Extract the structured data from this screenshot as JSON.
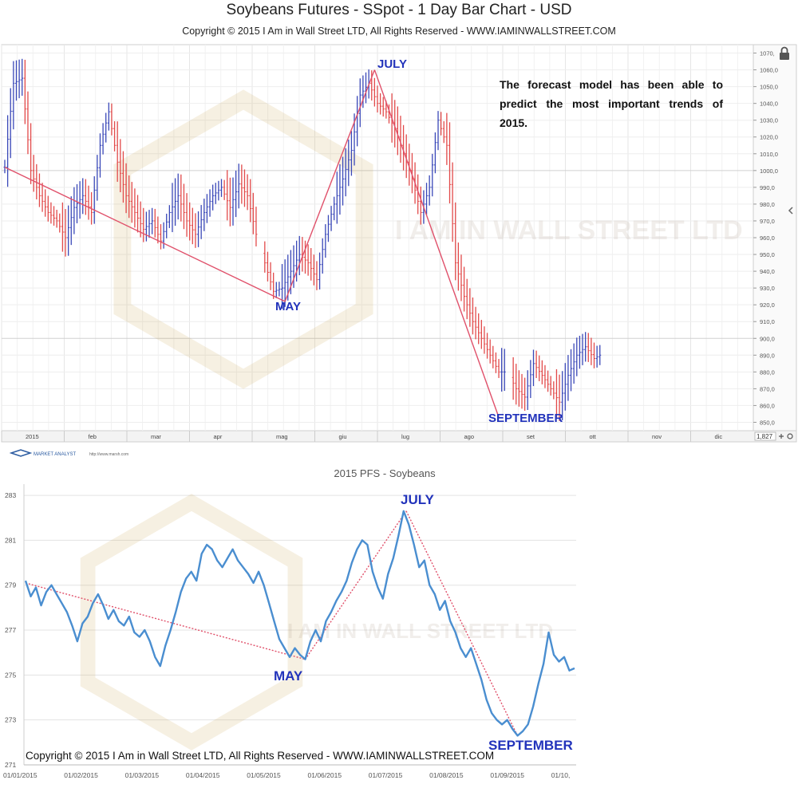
{
  "header": {
    "title": "Soybeans Futures - SSpot - 1 Day Bar Chart - USD",
    "copyright": "Copyright © 2015 I Am in Wall Street LTD, All Rights Reserved  -  WWW.IAMINWALLSTREET.COM"
  },
  "forecast_note": "The forecast model has been able to predict the most important trends of 2015.",
  "watermark": "I AM IN WALL STREET LTD",
  "platform": {
    "logo": "MARKET ANALYST",
    "url": "http://www.marsh.com",
    "scroll_value": "1,827"
  },
  "colors": {
    "up_bar": "#3a48b8",
    "down_bar": "#e24a4a",
    "trend_line": "#e0506a",
    "pfs_line": "#4a8ed0",
    "annotation": "#2233bb"
  },
  "chart_data": [
    {
      "type": "bar",
      "title": "Soybeans Futures - SSpot - 1 Day Bar Chart - USD",
      "x_ticks": [
        "2015",
        "feb",
        "mar",
        "apr",
        "mag",
        "giu",
        "lug",
        "ago",
        "set",
        "ott",
        "nov",
        "dic"
      ],
      "y_ticks": [
        "850,0",
        "860,0",
        "870,0",
        "880,0",
        "890,0",
        "900,0",
        "910,0",
        "920,0",
        "930,0",
        "940,0",
        "950,0",
        "960,0",
        "970,0",
        "980,0",
        "990,0",
        "1000,0",
        "1010,0",
        "1020,0",
        "1030,0",
        "1040,0",
        "1050,0",
        "1060,0",
        "1070,"
      ],
      "ylim": [
        845,
        1075
      ],
      "close_path": [
        [
          0,
          1002
        ],
        [
          3,
          1052
        ],
        [
          6,
          1055
        ],
        [
          9,
          1000
        ],
        [
          12,
          985
        ],
        [
          15,
          975
        ],
        [
          18,
          970
        ],
        [
          21,
          960
        ],
        [
          24,
          978
        ],
        [
          27,
          985
        ],
        [
          30,
          975
        ],
        [
          33,
          1015
        ],
        [
          36,
          1035
        ],
        [
          39,
          1005
        ],
        [
          42,
          985
        ],
        [
          45,
          975
        ],
        [
          48,
          965
        ],
        [
          51,
          970
        ],
        [
          54,
          958
        ],
        [
          57,
          975
        ],
        [
          60,
          985
        ],
        [
          63,
          970
        ],
        [
          66,
          962
        ],
        [
          69,
          975
        ],
        [
          72,
          985
        ],
        [
          75,
          990
        ],
        [
          78,
          978
        ],
        [
          81,
          992
        ],
        [
          84,
          985
        ],
        [
          87,
          962
        ],
        [
          90,
          945
        ],
        [
          93,
          928
        ],
        [
          96,
          930
        ],
        [
          99,
          940
        ],
        [
          102,
          950
        ],
        [
          105,
          945
        ],
        [
          108,
          935
        ],
        [
          111,
          962
        ],
        [
          114,
          980
        ],
        [
          117,
          995
        ],
        [
          120,
          1012
        ],
        [
          123,
          1045
        ],
        [
          126,
          1052
        ],
        [
          129,
          1040
        ],
        [
          132,
          1035
        ],
        [
          135,
          1025
        ],
        [
          138,
          1010
        ],
        [
          141,
          995
        ],
        [
          144,
          975
        ],
        [
          147,
          990
        ],
        [
          150,
          1030
        ],
        [
          153,
          1015
        ],
        [
          156,
          945
        ],
        [
          159,
          925
        ],
        [
          162,
          910
        ],
        [
          165,
          900
        ],
        [
          168,
          890
        ],
        [
          171,
          880
        ],
        [
          174,
          880
        ],
        [
          177,
          870
        ],
        [
          180,
          865
        ],
        [
          183,
          885
        ],
        [
          186,
          878
        ],
        [
          189,
          870
        ],
        [
          192,
          862
        ],
        [
          195,
          878
        ],
        [
          198,
          890
        ],
        [
          201,
          895
        ],
        [
          204,
          888
        ],
        [
          206,
          890
        ]
      ],
      "trend_points": [
        {
          "label": "",
          "x": 0,
          "y": 1002
        },
        {
          "label": "MAY",
          "x": 97,
          "y": 922
        },
        {
          "label": "JULY",
          "x": 128,
          "y": 1060
        },
        {
          "label": "SEPTEMBER",
          "x": 171,
          "y": 853
        }
      ]
    },
    {
      "type": "line",
      "title": "2015 PFS - Soybeans",
      "x_ticks": [
        "01/01/2015",
        "01/02/2015",
        "01/03/2015",
        "01/04/2015",
        "01/05/2015",
        "01/06/2015",
        "01/07/2015",
        "01/08/2015",
        "01/09/2015",
        "01/10,"
      ],
      "y_ticks": [
        "271",
        "273",
        "275",
        "277",
        "279",
        "281",
        "283"
      ],
      "ylim": [
        271,
        283.5
      ],
      "series": [
        {
          "values": [
            [
              0,
              279.2
            ],
            [
              2,
              278.5
            ],
            [
              4,
              278.9
            ],
            [
              6,
              278.1
            ],
            [
              8,
              278.7
            ],
            [
              10,
              279.0
            ],
            [
              12,
              278.6
            ],
            [
              14,
              278.2
            ],
            [
              16,
              277.8
            ],
            [
              18,
              277.2
            ],
            [
              20,
              276.5
            ],
            [
              22,
              277.3
            ],
            [
              24,
              277.6
            ],
            [
              26,
              278.2
            ],
            [
              28,
              278.6
            ],
            [
              30,
              278.1
            ],
            [
              32,
              277.5
            ],
            [
              34,
              277.9
            ],
            [
              36,
              277.4
            ],
            [
              38,
              277.2
            ],
            [
              40,
              277.6
            ],
            [
              42,
              276.9
            ],
            [
              44,
              276.7
            ],
            [
              46,
              277.0
            ],
            [
              48,
              276.5
            ],
            [
              50,
              275.8
            ],
            [
              52,
              275.4
            ],
            [
              54,
              276.3
            ],
            [
              56,
              277.0
            ],
            [
              58,
              277.8
            ],
            [
              60,
              278.7
            ],
            [
              62,
              279.3
            ],
            [
              64,
              279.6
            ],
            [
              66,
              279.2
            ],
            [
              68,
              280.4
            ],
            [
              70,
              280.8
            ],
            [
              72,
              280.6
            ],
            [
              74,
              280.1
            ],
            [
              76,
              279.8
            ],
            [
              78,
              280.2
            ],
            [
              80,
              280.6
            ],
            [
              82,
              280.1
            ],
            [
              84,
              279.8
            ],
            [
              86,
              279.5
            ],
            [
              88,
              279.1
            ],
            [
              90,
              279.6
            ],
            [
              92,
              279.0
            ],
            [
              94,
              278.2
            ],
            [
              96,
              277.4
            ],
            [
              98,
              276.6
            ],
            [
              100,
              276.2
            ],
            [
              102,
              275.8
            ],
            [
              104,
              276.2
            ],
            [
              106,
              275.9
            ],
            [
              108,
              275.7
            ],
            [
              110,
              276.5
            ],
            [
              112,
              277.0
            ],
            [
              114,
              276.5
            ],
            [
              116,
              277.4
            ],
            [
              118,
              277.8
            ],
            [
              120,
              278.3
            ],
            [
              122,
              278.7
            ],
            [
              124,
              279.2
            ],
            [
              126,
              280.0
            ],
            [
              128,
              280.6
            ],
            [
              130,
              281.0
            ],
            [
              132,
              280.8
            ],
            [
              134,
              279.6
            ],
            [
              136,
              278.9
            ],
            [
              138,
              278.4
            ],
            [
              140,
              279.5
            ],
            [
              142,
              280.2
            ],
            [
              144,
              281.2
            ],
            [
              146,
              282.3
            ],
            [
              148,
              281.7
            ],
            [
              150,
              280.8
            ],
            [
              152,
              279.8
            ],
            [
              154,
              280.1
            ],
            [
              156,
              279.0
            ],
            [
              158,
              278.6
            ],
            [
              160,
              277.9
            ],
            [
              162,
              278.3
            ],
            [
              164,
              277.4
            ],
            [
              166,
              276.9
            ],
            [
              168,
              276.2
            ],
            [
              170,
              275.8
            ],
            [
              172,
              276.2
            ],
            [
              174,
              275.5
            ],
            [
              176,
              274.8
            ],
            [
              178,
              273.9
            ],
            [
              180,
              273.3
            ],
            [
              182,
              273.0
            ],
            [
              184,
              272.8
            ],
            [
              186,
              273.0
            ],
            [
              188,
              272.6
            ],
            [
              190,
              272.3
            ],
            [
              192,
              272.5
            ],
            [
              194,
              272.8
            ],
            [
              196,
              273.6
            ],
            [
              198,
              274.6
            ],
            [
              200,
              275.5
            ],
            [
              202,
              276.9
            ],
            [
              204,
              275.9
            ],
            [
              206,
              275.6
            ],
            [
              208,
              275.8
            ],
            [
              210,
              275.2
            ],
            [
              212,
              275.3
            ]
          ]
        }
      ],
      "trend_points": [
        {
          "label": "",
          "x": 0,
          "y": 279.1
        },
        {
          "label": "MAY",
          "x": 108,
          "y": 275.7
        },
        {
          "label": "JULY",
          "x": 147,
          "y": 282.3
        },
        {
          "label": "SEPTEMBER",
          "x": 190,
          "y": 272.3
        }
      ]
    }
  ]
}
